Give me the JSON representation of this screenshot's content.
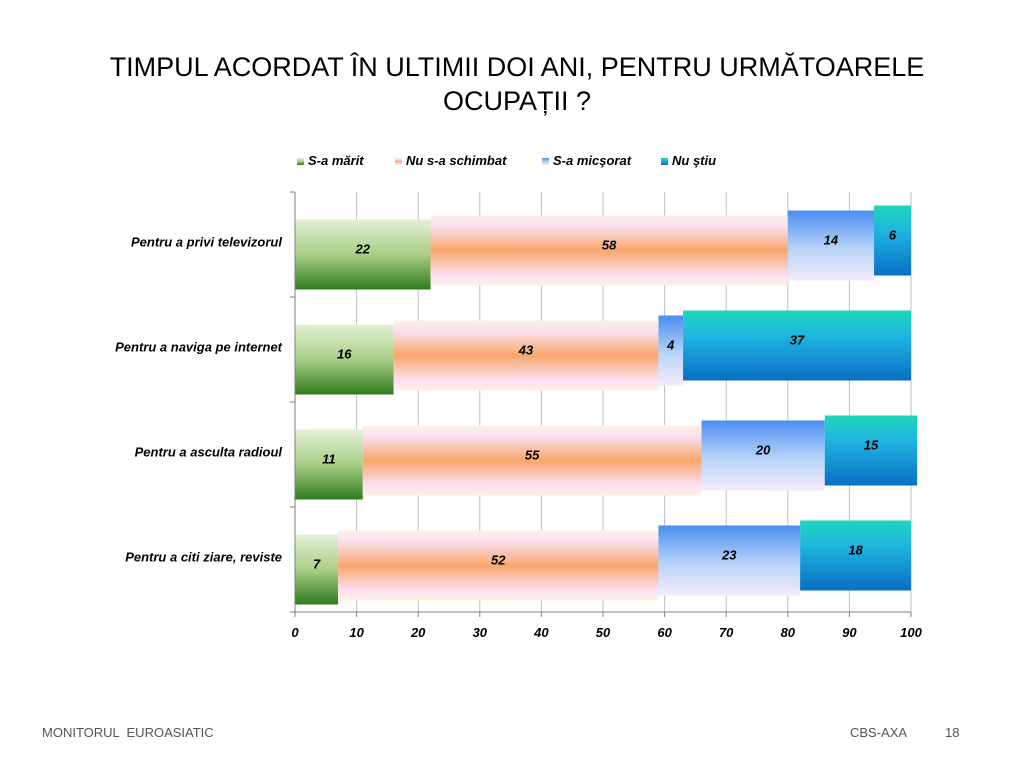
{
  "slide": {
    "title_line1": "TIMPUL ACORDAT ÎN ULTIMII DOI ANI, PENTRU URMĂTOARELE",
    "title_line2": "OCUPAȚII  ?",
    "footer_left": "MONITORUL  EUROASIATIC",
    "footer_right": "CBS-AXA",
    "page_number": "18"
  },
  "chart_data": {
    "type": "bar",
    "orientation": "horizontal",
    "stacked": true,
    "categories": [
      "Pentru a privi televizorul",
      "Pentru a naviga pe internet",
      "Pentru a asculta radioul",
      "Pentru a citi ziare, reviste"
    ],
    "series": [
      {
        "name": "S-a mărit",
        "values": [
          22,
          16,
          11,
          7
        ],
        "color": "#3f8a2a"
      },
      {
        "name": "Nu s-a schimbat",
        "values": [
          58,
          43,
          55,
          52
        ],
        "color": "#f7a96f"
      },
      {
        "name": "S-a micşorat",
        "values": [
          14,
          4,
          20,
          23
        ],
        "color": "#5b9bf0"
      },
      {
        "name": "Nu ştiu",
        "values": [
          6,
          37,
          15,
          18
        ],
        "color": "#1cb6d6"
      }
    ],
    "xlim": [
      0,
      100
    ],
    "xticks": [
      0,
      10,
      20,
      30,
      40,
      50,
      60,
      70,
      80,
      90,
      100
    ],
    "grid": true,
    "legend_position": "top"
  }
}
